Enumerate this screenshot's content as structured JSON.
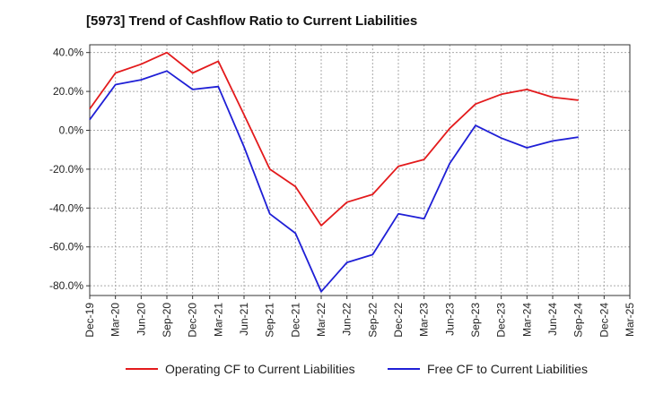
{
  "title": "[5973]  Trend of Cashflow Ratio to Current Liabilities",
  "colors": {
    "operating": "#e31a1c",
    "free": "#1f1fd6",
    "grid": "#aaaaaa",
    "axis": "#333333"
  },
  "chart_data": {
    "type": "line",
    "title": "[5973]  Trend of Cashflow Ratio to Current Liabilities",
    "x": [
      "Dec-19",
      "Mar-20",
      "Jun-20",
      "Sep-20",
      "Dec-20",
      "Mar-21",
      "Jun-21",
      "Sep-21",
      "Dec-21",
      "Mar-22",
      "Jun-22",
      "Sep-22",
      "Dec-22",
      "Mar-23",
      "Jun-23",
      "Sep-23",
      "Dec-23",
      "Mar-24",
      "Jun-24",
      "Sep-24",
      "Dec-24",
      "Mar-25"
    ],
    "ylim": [
      -85,
      44
    ],
    "yticks": [
      40,
      20,
      0,
      -20,
      -40,
      -60,
      -80
    ],
    "ytick_labels": [
      "40.0%",
      "20.0%",
      "0.0%",
      "-20.0%",
      "-40.0%",
      "-60.0%",
      "-80.0%"
    ],
    "grid": true,
    "legend_position": "bottom",
    "series": [
      {
        "name": "Operating CF to Current Liabilities",
        "color": "#e31a1c",
        "values": [
          11.0,
          29.5,
          34.0,
          40.0,
          29.5,
          35.5,
          8.0,
          -20.0,
          -29.0,
          -49.0,
          -37.0,
          -33.0,
          -18.5,
          -15.0,
          1.0,
          13.5,
          18.5,
          21.0,
          17.0,
          15.5,
          null,
          null
        ]
      },
      {
        "name": "Free CF to Current Liabilities",
        "color": "#1f1fd6",
        "values": [
          5.5,
          23.5,
          26.0,
          30.5,
          21.0,
          22.5,
          -8.5,
          -43.0,
          -53.0,
          -83.0,
          -68.0,
          -64.0,
          -43.0,
          -45.5,
          -17.0,
          2.5,
          -4.0,
          -9.0,
          -5.5,
          -3.5,
          null,
          null
        ]
      }
    ]
  }
}
